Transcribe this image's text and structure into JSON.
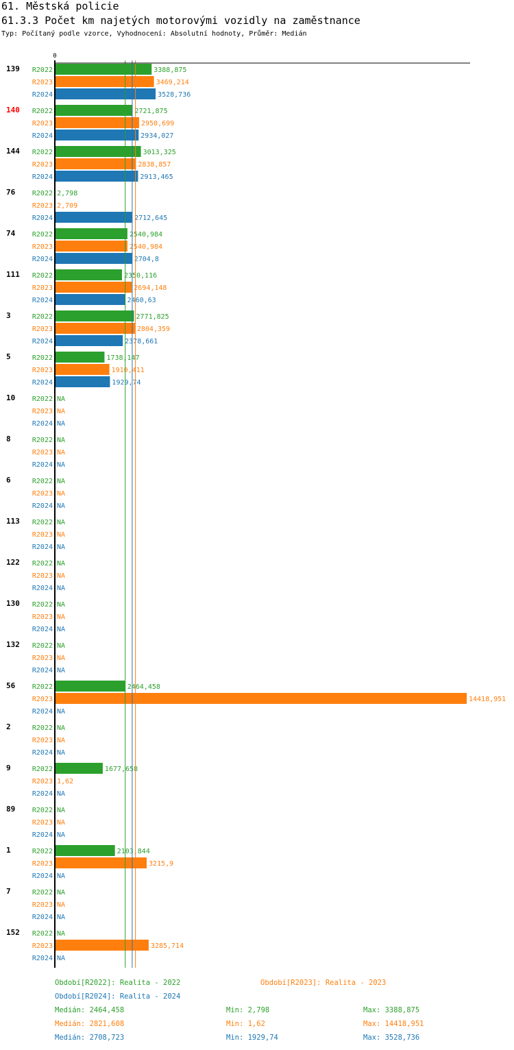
{
  "header": {
    "title": "61. Městská policie",
    "subtitle": "61.3.3 Počet km najetých motorovými vozidly na zaměstnance",
    "type_line": "Typ: Počítaný podle vzorce, Vyhodnocení: Absolutní hodnoty, Průměr: Medián"
  },
  "chart_data": {
    "type": "bar",
    "orientation": "horizontal",
    "axis_zero_label": "0",
    "xlim": [
      0,
      14418.951
    ],
    "series": [
      {
        "name": "R2022",
        "color": "#2ca02c",
        "legend": "Období[R2022]: Realita - 2022",
        "median": 2464.458,
        "median_label": "Medián: 2464,458",
        "min_label": "Min: 2,798",
        "max_label": "Max: 3388,875"
      },
      {
        "name": "R2023",
        "color": "#ff7f0e",
        "legend": "Období[R2023]: Realita - 2023",
        "median": 2821.608,
        "median_label": "Medián: 2821,608",
        "min_label": "Min: 1,62",
        "max_label": "Max: 14418,951"
      },
      {
        "name": "R2024",
        "color": "#1f77b4",
        "legend": "Období[R2024]: Realita - 2024",
        "median": 2708.723,
        "median_label": "Medián: 2708,723",
        "min_label": "Min: 1929,74",
        "max_label": "Max: 3528,736"
      }
    ],
    "groups": [
      {
        "label": "139",
        "highlight": false,
        "values": [
          3388.875,
          3469.214,
          3528.736
        ],
        "labels": [
          "3388,875",
          "3469,214",
          "3528,736"
        ]
      },
      {
        "label": "140",
        "highlight": true,
        "values": [
          2721.875,
          2950.699,
          2934.027
        ],
        "labels": [
          "2721,875",
          "2950,699",
          "2934,027"
        ]
      },
      {
        "label": "144",
        "highlight": false,
        "values": [
          3013.325,
          2838.857,
          2913.465
        ],
        "labels": [
          "3013,325",
          "2838,857",
          "2913,465"
        ]
      },
      {
        "label": "76",
        "highlight": false,
        "values": [
          2.798,
          2.709,
          2712.645
        ],
        "labels": [
          "2,798",
          "2,709",
          "2712,645"
        ]
      },
      {
        "label": "74",
        "highlight": false,
        "values": [
          2540.984,
          2540.984,
          2704.8
        ],
        "labels": [
          "2540,984",
          "2540,984",
          "2704,8"
        ]
      },
      {
        "label": "111",
        "highlight": false,
        "values": [
          2350.116,
          2694.148,
          2460.63
        ],
        "labels": [
          "2350,116",
          "2694,148",
          "2460,63"
        ]
      },
      {
        "label": "3",
        "highlight": false,
        "values": [
          2771.825,
          2804.359,
          2378.661
        ],
        "labels": [
          "2771,825",
          "2804,359",
          "2378,661"
        ]
      },
      {
        "label": "5",
        "highlight": false,
        "values": [
          1738.147,
          1910.411,
          1929.74
        ],
        "labels": [
          "1738,147",
          "1910,411",
          "1929,74"
        ]
      },
      {
        "label": "10",
        "highlight": false,
        "values": [
          null,
          null,
          null
        ],
        "labels": [
          "NA",
          "NA",
          "NA"
        ]
      },
      {
        "label": "8",
        "highlight": false,
        "values": [
          null,
          null,
          null
        ],
        "labels": [
          "NA",
          "NA",
          "NA"
        ]
      },
      {
        "label": "6",
        "highlight": false,
        "values": [
          null,
          null,
          null
        ],
        "labels": [
          "NA",
          "NA",
          "NA"
        ]
      },
      {
        "label": "113",
        "highlight": false,
        "values": [
          null,
          null,
          null
        ],
        "labels": [
          "NA",
          "NA",
          "NA"
        ]
      },
      {
        "label": "122",
        "highlight": false,
        "values": [
          null,
          null,
          null
        ],
        "labels": [
          "NA",
          "NA",
          "NA"
        ]
      },
      {
        "label": "130",
        "highlight": false,
        "values": [
          null,
          null,
          null
        ],
        "labels": [
          "NA",
          "NA",
          "NA"
        ]
      },
      {
        "label": "132",
        "highlight": false,
        "values": [
          null,
          null,
          null
        ],
        "labels": [
          "NA",
          "NA",
          "NA"
        ]
      },
      {
        "label": "56",
        "highlight": false,
        "values": [
          2464.458,
          14418.951,
          null
        ],
        "labels": [
          "2464,458",
          "14418,951",
          "NA"
        ]
      },
      {
        "label": "2",
        "highlight": false,
        "values": [
          null,
          null,
          null
        ],
        "labels": [
          "NA",
          "NA",
          "NA"
        ]
      },
      {
        "label": "9",
        "highlight": false,
        "values": [
          1677.658,
          1.62,
          null
        ],
        "labels": [
          "1677,658",
          "1,62",
          "NA"
        ]
      },
      {
        "label": "89",
        "highlight": false,
        "values": [
          null,
          null,
          null
        ],
        "labels": [
          "NA",
          "NA",
          "NA"
        ]
      },
      {
        "label": "1",
        "highlight": false,
        "values": [
          2103.844,
          3215.9,
          null
        ],
        "labels": [
          "2103,844",
          "3215,9",
          "NA"
        ]
      },
      {
        "label": "7",
        "highlight": false,
        "values": [
          null,
          null,
          null
        ],
        "labels": [
          "NA",
          "NA",
          "NA"
        ]
      },
      {
        "label": "152",
        "highlight": false,
        "values": [
          null,
          3285.714,
          null
        ],
        "labels": [
          "NA",
          "3285,714",
          "NA"
        ]
      }
    ]
  }
}
